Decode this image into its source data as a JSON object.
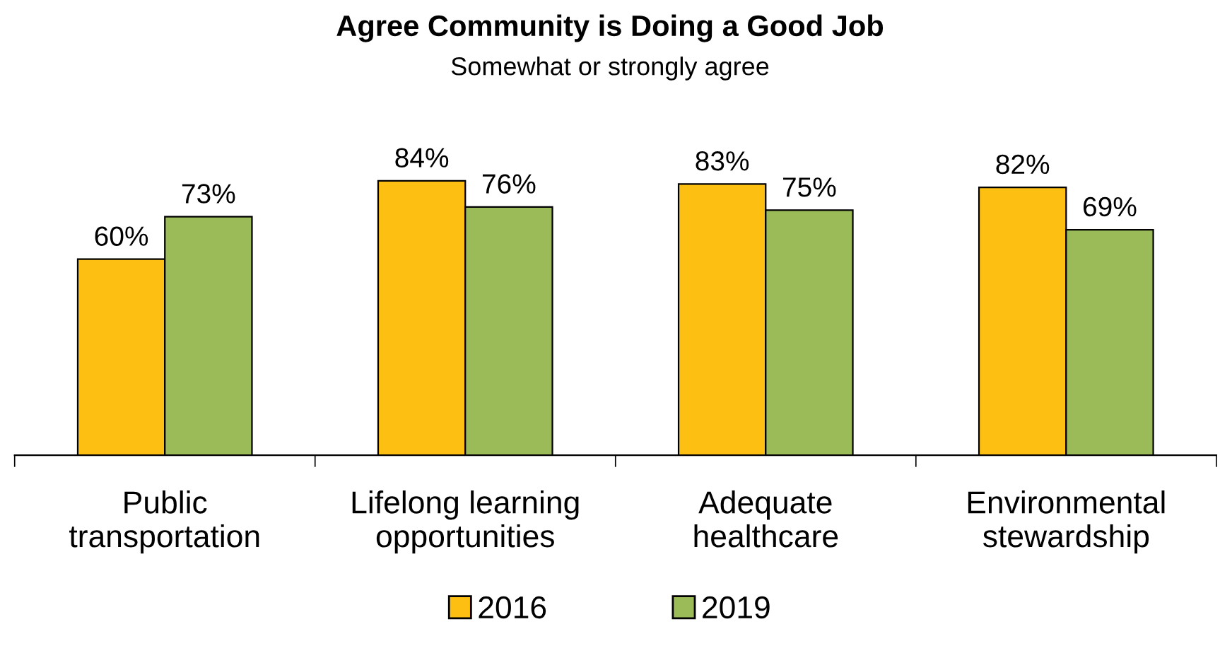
{
  "chart_data": {
    "type": "bar",
    "title": "Agree Community is Doing a Good Job",
    "subtitle": "Somewhat or strongly agree",
    "categories": [
      "Public\ntransportation",
      "Lifelong learning\nopportunities",
      "Adequate\nhealthcare",
      "Environmental\nstewardship"
    ],
    "series": [
      {
        "name": "2016",
        "color": "#fcbf12",
        "values": [
          60,
          84,
          83,
          82
        ],
        "value_labels": [
          "60%",
          "84%",
          "83%",
          "82%"
        ]
      },
      {
        "name": "2019",
        "color": "#9bbb59",
        "values": [
          73,
          76,
          75,
          69
        ],
        "value_labels": [
          "73%",
          "76%",
          "75%",
          "69%"
        ]
      }
    ],
    "legend": "bottom",
    "grid": false
  }
}
